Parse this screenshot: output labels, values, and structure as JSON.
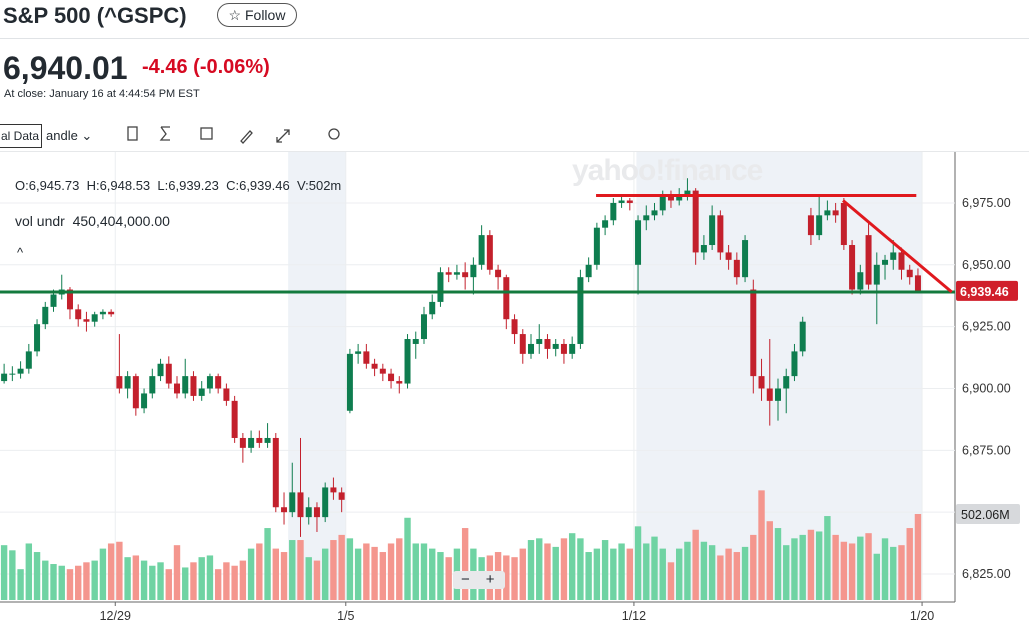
{
  "header": {
    "title": "S&P 500 (^GSPC)",
    "follow": "Follow",
    "price": "6,940.01",
    "change": "-4.46",
    "change_pct": "(-0.06%)",
    "close_time": "At close: January 16 at 4:44:54 PM EST"
  },
  "toolbar": {
    "data_mode": "al Data",
    "chart_kind": "andle"
  },
  "readout": {
    "open": "O:6,945.73",
    "high": "H:6,948.53",
    "low": "L:6,939.23",
    "close": "C:6,939.46",
    "volume": "V:502m",
    "indicator": "vol undr",
    "indicator_value": "450,404,000.00"
  },
  "watermark": "yahoo!finance",
  "chart_data": {
    "type": "candlestick",
    "up_color": "#0e7d4f",
    "down_color": "#c3202c",
    "volume_up_color": "#6fd3a3",
    "volume_down_color": "#f4968e",
    "x": [
      0,
      1,
      2,
      3,
      4,
      5,
      6,
      7,
      8,
      9,
      10,
      11,
      12,
      13,
      14,
      15,
      16,
      17,
      18,
      19,
      20,
      21,
      22,
      23,
      24,
      25,
      26,
      27,
      28,
      29,
      30,
      31,
      32,
      33,
      34,
      35,
      36,
      37,
      38,
      39,
      40,
      41,
      42,
      43,
      44,
      45,
      46,
      47,
      48,
      49,
      50,
      51,
      52,
      53,
      54,
      55,
      56,
      57,
      58,
      59,
      60,
      61,
      62,
      63,
      64,
      65,
      66,
      67,
      68,
      69,
      70,
      71,
      72,
      73,
      74,
      75,
      76,
      77,
      78,
      79,
      80,
      81,
      82,
      83,
      84,
      85,
      86,
      87,
      88,
      89,
      90,
      91,
      92,
      93,
      94,
      95,
      96,
      97,
      98,
      99,
      100,
      101,
      102,
      103,
      104,
      105,
      106,
      107,
      108,
      109,
      110,
      111
    ],
    "ohlc": [
      [
        6903,
        6910,
        6902,
        6906
      ],
      [
        6906,
        6909,
        6903,
        6906
      ],
      [
        6906,
        6911,
        6904,
        6908
      ],
      [
        6908,
        6918,
        6906,
        6915
      ],
      [
        6915,
        6928,
        6913,
        6926
      ],
      [
        6926,
        6935,
        6924,
        6933
      ],
      [
        6933,
        6940,
        6931,
        6938
      ],
      [
        6938,
        6946,
        6936,
        6940
      ],
      [
        6940,
        6941,
        6928,
        6932
      ],
      [
        6932,
        6934,
        6925,
        6928
      ],
      [
        6928,
        6931,
        6923,
        6927
      ],
      [
        6927,
        6931,
        6925,
        6930
      ],
      [
        6930,
        6932,
        6928,
        6931
      ],
      [
        6931,
        6932,
        6929,
        6930
      ],
      [
        6905,
        6922,
        6898,
        6900
      ],
      [
        6900,
        6907,
        6896,
        6905
      ],
      [
        6905,
        6906,
        6889,
        6892
      ],
      [
        6892,
        6900,
        6890,
        6898
      ],
      [
        6898,
        6908,
        6896,
        6905
      ],
      [
        6905,
        6912,
        6903,
        6910
      ],
      [
        6910,
        6913,
        6900,
        6902
      ],
      [
        6902,
        6905,
        6896,
        6898
      ],
      [
        6898,
        6912,
        6896,
        6905
      ],
      [
        6905,
        6907,
        6895,
        6897
      ],
      [
        6897,
        6903,
        6895,
        6900
      ],
      [
        6900,
        6906,
        6898,
        6905
      ],
      [
        6905,
        6906,
        6898,
        6900
      ],
      [
        6900,
        6902,
        6893,
        6895
      ],
      [
        6895,
        6897,
        6878,
        6880
      ],
      [
        6880,
        6882,
        6870,
        6876
      ],
      [
        6876,
        6883,
        6874,
        6880
      ],
      [
        6880,
        6883,
        6876,
        6878
      ],
      [
        6878,
        6886,
        6876,
        6880
      ],
      [
        6880,
        6882,
        6850,
        6852
      ],
      [
        6852,
        6858,
        6845,
        6850
      ],
      [
        6850,
        6870,
        6848,
        6858
      ],
      [
        6858,
        6880,
        6840,
        6848
      ],
      [
        6848,
        6856,
        6845,
        6852
      ],
      [
        6852,
        6854,
        6842,
        6848
      ],
      [
        6848,
        6862,
        6846,
        6860
      ],
      [
        6860,
        6864,
        6855,
        6858
      ],
      [
        6858,
        6860,
        6850,
        6855
      ],
      [
        6891,
        6916,
        6890,
        6914
      ],
      [
        6914,
        6918,
        6910,
        6915
      ],
      [
        6915,
        6918,
        6908,
        6910
      ],
      [
        6910,
        6912,
        6905,
        6908
      ],
      [
        6908,
        6910,
        6903,
        6906
      ],
      [
        6906,
        6908,
        6900,
        6903
      ],
      [
        6903,
        6905,
        6898,
        6902
      ],
      [
        6902,
        6922,
        6900,
        6920
      ],
      [
        6918,
        6923,
        6912,
        6920
      ],
      [
        6920,
        6933,
        6918,
        6930
      ],
      [
        6930,
        6938,
        6928,
        6935
      ],
      [
        6935,
        6949,
        6933,
        6947
      ],
      [
        6947,
        6949,
        6943,
        6946
      ],
      [
        6946,
        6950,
        6944,
        6947
      ],
      [
        6947,
        6951,
        6940,
        6945
      ],
      [
        6945,
        6953,
        6938,
        6950
      ],
      [
        6950,
        6966,
        6948,
        6962
      ],
      [
        6962,
        6964,
        6946,
        6948
      ],
      [
        6948,
        6950,
        6940,
        6945
      ],
      [
        6945,
        6946,
        6924,
        6928
      ],
      [
        6928,
        6930,
        6918,
        6922
      ],
      [
        6922,
        6924,
        6910,
        6914
      ],
      [
        6914,
        6922,
        6912,
        6918
      ],
      [
        6918,
        6926,
        6914,
        6920
      ],
      [
        6920,
        6922,
        6912,
        6916
      ],
      [
        6916,
        6920,
        6913,
        6918
      ],
      [
        6918,
        6920,
        6910,
        6914
      ],
      [
        6914,
        6921,
        6912,
        6918
      ],
      [
        6918,
        6948,
        6916,
        6945
      ],
      [
        6945,
        6953,
        6943,
        6950
      ],
      [
        6950,
        6967,
        6948,
        6965
      ],
      [
        6965,
        6970,
        6962,
        6968
      ],
      [
        6968,
        6977,
        6966,
        6975
      ],
      [
        6975,
        6978,
        6973,
        6976
      ],
      [
        6976,
        6977,
        6972,
        6975
      ],
      [
        6950,
        6970,
        6938,
        6968
      ],
      [
        6968,
        6974,
        6964,
        6970
      ],
      [
        6970,
        6975,
        6968,
        6972
      ],
      [
        6972,
        6980,
        6970,
        6978
      ],
      [
        6978,
        6980,
        6973,
        6976
      ],
      [
        6976,
        6981,
        6974,
        6978
      ],
      [
        6978,
        6985,
        6976,
        6980
      ],
      [
        6980,
        6981,
        6950,
        6955
      ],
      [
        6955,
        6962,
        6952,
        6958
      ],
      [
        6958,
        6974,
        6956,
        6970
      ],
      [
        6970,
        6972,
        6952,
        6955
      ],
      [
        6955,
        6958,
        6948,
        6952
      ],
      [
        6952,
        6955,
        6942,
        6945
      ],
      [
        6945,
        6962,
        6943,
        6960
      ],
      [
        6940,
        6944,
        6898,
        6905
      ],
      [
        6905,
        6912,
        6895,
        6900
      ],
      [
        6900,
        6920,
        6885,
        6895
      ],
      [
        6895,
        6904,
        6887,
        6900
      ],
      [
        6900,
        6908,
        6890,
        6905
      ],
      [
        6905,
        6918,
        6903,
        6915
      ],
      [
        6915,
        6929,
        6913,
        6927
      ],
      [
        6970,
        6973,
        6958,
        6962
      ],
      [
        6962,
        6978,
        6960,
        6970
      ],
      [
        6970,
        6976,
        6968,
        6972
      ],
      [
        6972,
        6975,
        6967,
        6970
      ],
      [
        6975,
        6977,
        6956,
        6958
      ],
      [
        6958,
        6960,
        6938,
        6940
      ],
      [
        6940,
        6950,
        6938,
        6947
      ],
      [
        6962,
        6967,
        6940,
        6942
      ],
      [
        6942,
        6955,
        6926,
        6950
      ],
      [
        6950,
        6954,
        6944,
        6952
      ],
      [
        6952,
        6960,
        6948,
        6955
      ],
      [
        6955,
        6957,
        6944,
        6948
      ],
      [
        6948,
        6950,
        6942,
        6945
      ],
      [
        6945.73,
        6948.53,
        6939.23,
        6939.46
      ]
    ],
    "volume": [
      320,
      290,
      180,
      330,
      280,
      230,
      210,
      200,
      180,
      200,
      220,
      230,
      300,
      330,
      340,
      250,
      260,
      230,
      200,
      220,
      180,
      320,
      190,
      220,
      250,
      260,
      180,
      220,
      200,
      230,
      300,
      330,
      420,
      300,
      280,
      350,
      350,
      250,
      230,
      300,
      350,
      380,
      360,
      300,
      330,
      310,
      280,
      330,
      360,
      480,
      330,
      330,
      300,
      280,
      250,
      300,
      420,
      300,
      250,
      260,
      280,
      260,
      250,
      300,
      350,
      360,
      330,
      310,
      360,
      390,
      360,
      280,
      300,
      350,
      300,
      330,
      300,
      430,
      330,
      370,
      300,
      220,
      300,
      340,
      410,
      340,
      320,
      260,
      300,
      280,
      310,
      380,
      640,
      460,
      420,
      320,
      360,
      380,
      410,
      400,
      490,
      380,
      340,
      330,
      370,
      390,
      270,
      360,
      310,
      320,
      420,
      502.06
    ],
    "volume_lim": [
      0,
      2615
    ],
    "xlim": [
      -0.5,
      115.5
    ],
    "xticks": [
      {
        "value": 13.5,
        "label": "12/29"
      },
      {
        "value": 41.5,
        "label": "1/5"
      },
      {
        "value": 76.5,
        "label": "1/12"
      },
      {
        "value": 111.5,
        "label": "1/20"
      }
    ],
    "ylim": [
      6814.5,
      6995.6
    ],
    "yticks": [
      {
        "value": 6825,
        "label": "6,825.00"
      },
      {
        "value": 6850,
        "label": ""
      },
      {
        "value": 6875,
        "label": "6,875.00"
      },
      {
        "value": 6900,
        "label": "6,900.00"
      },
      {
        "value": 6925,
        "label": "6,925.00"
      },
      {
        "value": 6950,
        "label": "6,950.00"
      },
      {
        "value": 6975,
        "label": "6,975.00"
      }
    ],
    "grid": true,
    "shaded_ranges": [
      [
        34.5,
        41.5
      ],
      [
        76.8,
        111.5
      ]
    ],
    "last_price": {
      "value": 6939.46,
      "label": "6,939.46"
    },
    "last_volume": {
      "value": 502.06,
      "label": "502.06M"
    },
    "drawings": [
      {
        "color": "#e0191e",
        "points": [
          [
            71.9,
            6978
          ],
          [
            110.8,
            6978
          ]
        ]
      },
      {
        "color": "#137a3e",
        "points": [
          [
            -0.5,
            6939
          ],
          [
            115.5,
            6939
          ]
        ]
      },
      {
        "color": "#e0191e",
        "points": [
          [
            101.9,
            6976
          ],
          [
            115.1,
            6939
          ]
        ]
      }
    ]
  }
}
